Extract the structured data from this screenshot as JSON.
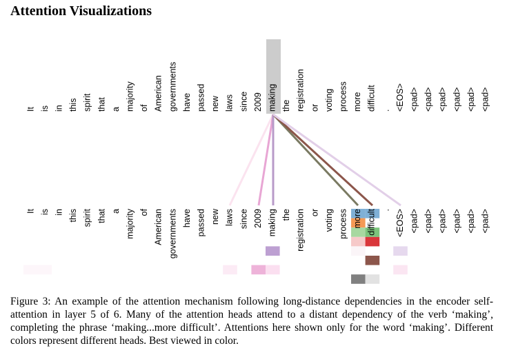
{
  "title": "Attention Visualizations",
  "tokens": [
    "It",
    "is",
    "in",
    "this",
    "spirit",
    "that",
    "a",
    "majority",
    "of",
    "American",
    "governments",
    "have",
    "passed",
    "new",
    "laws",
    "since",
    "2009",
    "making",
    "the",
    "registration",
    "or",
    "voting",
    "process",
    "more",
    "difficult",
    ".",
    "<EOS>",
    "<pad>",
    "<pad>",
    "<pad>",
    "<pad>",
    "<pad>",
    "<pad>"
  ],
  "caption": "Figure 3: An example of the attention mechanism following long-distance dependencies in the encoder self-attention in layer 5 of 6. Many of the attention heads attend to a distant dependency of the verb ‘making’, completing the phrase ‘making...more difficult’. Attentions here shown only for the word ‘making’. Different colors represent different heads. Best viewed in color."
}
